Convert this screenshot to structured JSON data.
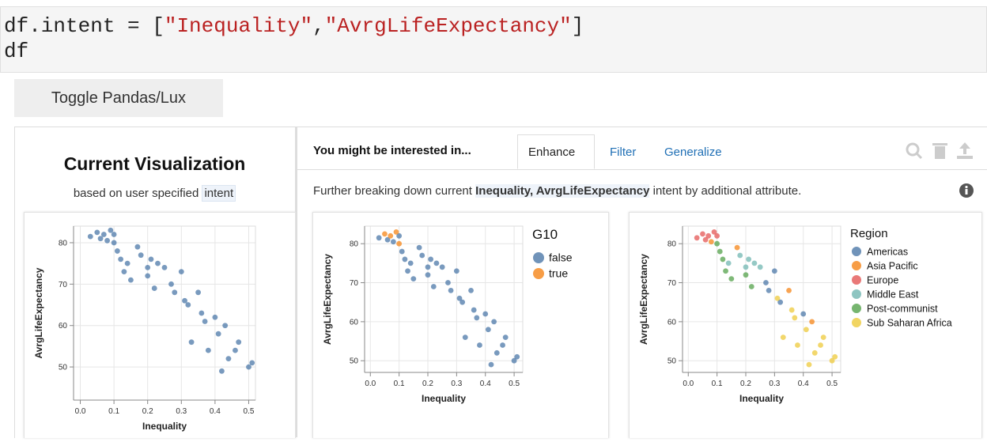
{
  "code_lines": [
    [
      "df.intent = [",
      "\"Inequality\"",
      ",",
      "\"AvrgLifeExpectancy\"",
      "]"
    ],
    [
      "df"
    ]
  ],
  "toggle_button": "Toggle Pandas/Lux",
  "current": {
    "title": "Current Visualization",
    "subtitle": "based on user specified ",
    "subtitle_highlight": "intent"
  },
  "header": {
    "prompt": "You might be interested in...",
    "tabs": [
      "Enhance",
      "Filter",
      "Generalize"
    ]
  },
  "description": {
    "before": "Further breaking down current ",
    "highlight": "Inequality, AvrgLifeExpectancy",
    "after": " intent by additional attribute."
  },
  "chart_data": [
    {
      "type": "scatter",
      "xlabel": "Inequality",
      "ylabel": "AvrgLifeExpectancy",
      "color": "#4c78a8",
      "x": [
        0.03,
        0.05,
        0.06,
        0.07,
        0.08,
        0.09,
        0.1,
        0.1,
        0.11,
        0.12,
        0.13,
        0.14,
        0.15,
        0.17,
        0.18,
        0.2,
        0.2,
        0.21,
        0.22,
        0.23,
        0.25,
        0.27,
        0.28,
        0.3,
        0.31,
        0.32,
        0.33,
        0.35,
        0.36,
        0.37,
        0.38,
        0.4,
        0.41,
        0.42,
        0.43,
        0.44,
        0.46,
        0.47,
        0.5,
        0.51
      ],
      "values": [
        81.5,
        82.5,
        81,
        82,
        80.5,
        83,
        82,
        80,
        78,
        76,
        73,
        75,
        71,
        79,
        77,
        74,
        72,
        76,
        69,
        75,
        74,
        70,
        68,
        73,
        66,
        65,
        56,
        68,
        63,
        61,
        54,
        62,
        58,
        49,
        60,
        52,
        54,
        56,
        50,
        51
      ],
      "xlim": [
        -0.02,
        0.52
      ],
      "ylim": [
        42,
        84
      ],
      "xticks": [
        {
          "value": 0,
          "label": "0.0"
        },
        0.1,
        0.2,
        0.3,
        0.4,
        0.5
      ],
      "yticks": [
        50,
        60,
        70,
        80
      ],
      "grid": true
    },
    {
      "type": "scatter",
      "xlabel": "Inequality",
      "ylabel": "AvrgLifeExpectancy",
      "legend_title": "G10",
      "series": [
        {
          "name": "false",
          "color": "#4c78a8",
          "x": [
            0.03,
            0.06,
            0.08,
            0.1,
            0.11,
            0.12,
            0.13,
            0.14,
            0.15,
            0.17,
            0.18,
            0.2,
            0.2,
            0.21,
            0.22,
            0.23,
            0.25,
            0.27,
            0.28,
            0.3,
            0.31,
            0.32,
            0.33,
            0.35,
            0.36,
            0.37,
            0.38,
            0.4,
            0.41,
            0.42,
            0.43,
            0.44,
            0.46,
            0.47,
            0.5,
            0.51
          ],
          "values": [
            81.5,
            81,
            80.5,
            82,
            78,
            76,
            73,
            75,
            71,
            79,
            77,
            74,
            72,
            76,
            69,
            75,
            74,
            70,
            68,
            73,
            66,
            65,
            56,
            68,
            63,
            61,
            54,
            62,
            58,
            49,
            60,
            52,
            54,
            56,
            50,
            51
          ]
        },
        {
          "name": "true",
          "color": "#f58518",
          "x": [
            0.05,
            0.07,
            0.09,
            0.1
          ],
          "values": [
            82.5,
            82,
            83,
            80
          ]
        }
      ],
      "xlim": [
        -0.02,
        0.53
      ],
      "ylim": [
        47,
        84.5
      ],
      "xticks": [
        {
          "value": 0,
          "label": "0.0"
        },
        0.1,
        0.2,
        0.3,
        0.4,
        0.5
      ],
      "yticks": [
        50,
        60,
        70,
        80
      ],
      "grid": true
    },
    {
      "type": "scatter",
      "xlabel": "Inequality",
      "ylabel": "AvrgLifeExpectancy",
      "legend_title": "Region",
      "series": [
        {
          "name": "Americas",
          "color": "#4c78a8",
          "x": [
            0.27,
            0.28,
            0.3,
            0.32,
            0.4
          ],
          "values": [
            70,
            68,
            73,
            65,
            62
          ]
        },
        {
          "name": "Asia Pacific",
          "color": "#f58518",
          "x": [
            0.08,
            0.17,
            0.35,
            0.43
          ],
          "values": [
            80.5,
            79,
            68,
            60
          ]
        },
        {
          "name": "Europe",
          "color": "#e45756",
          "x": [
            0.03,
            0.05,
            0.06,
            0.07,
            0.09,
            0.1
          ],
          "values": [
            81.5,
            82.5,
            81,
            82,
            83,
            82
          ]
        },
        {
          "name": "Middle East",
          "color": "#72b7b2",
          "x": [
            0.14,
            0.18,
            0.2,
            0.21,
            0.23,
            0.25
          ],
          "values": [
            75,
            77,
            74,
            76,
            75,
            74
          ]
        },
        {
          "name": "Post-communist",
          "color": "#54a24b",
          "x": [
            0.1,
            0.11,
            0.12,
            0.13,
            0.15,
            0.2,
            0.22
          ],
          "values": [
            80,
            78,
            76,
            73,
            71,
            72,
            69
          ]
        },
        {
          "name": "Sub Saharan Africa",
          "color": "#eeca3b",
          "x": [
            0.31,
            0.33,
            0.36,
            0.37,
            0.38,
            0.41,
            0.42,
            0.44,
            0.46,
            0.47,
            0.5,
            0.51
          ],
          "values": [
            66,
            56,
            63,
            61,
            54,
            58,
            49,
            52,
            54,
            56,
            50,
            51
          ]
        }
      ],
      "xlim": [
        -0.02,
        0.53
      ],
      "ylim": [
        47,
        84.5
      ],
      "xticks": [
        {
          "value": 0,
          "label": "0.0"
        },
        0.1,
        0.2,
        0.3,
        0.4,
        0.5
      ],
      "yticks": [
        50,
        60,
        70,
        80
      ],
      "grid": true
    }
  ]
}
